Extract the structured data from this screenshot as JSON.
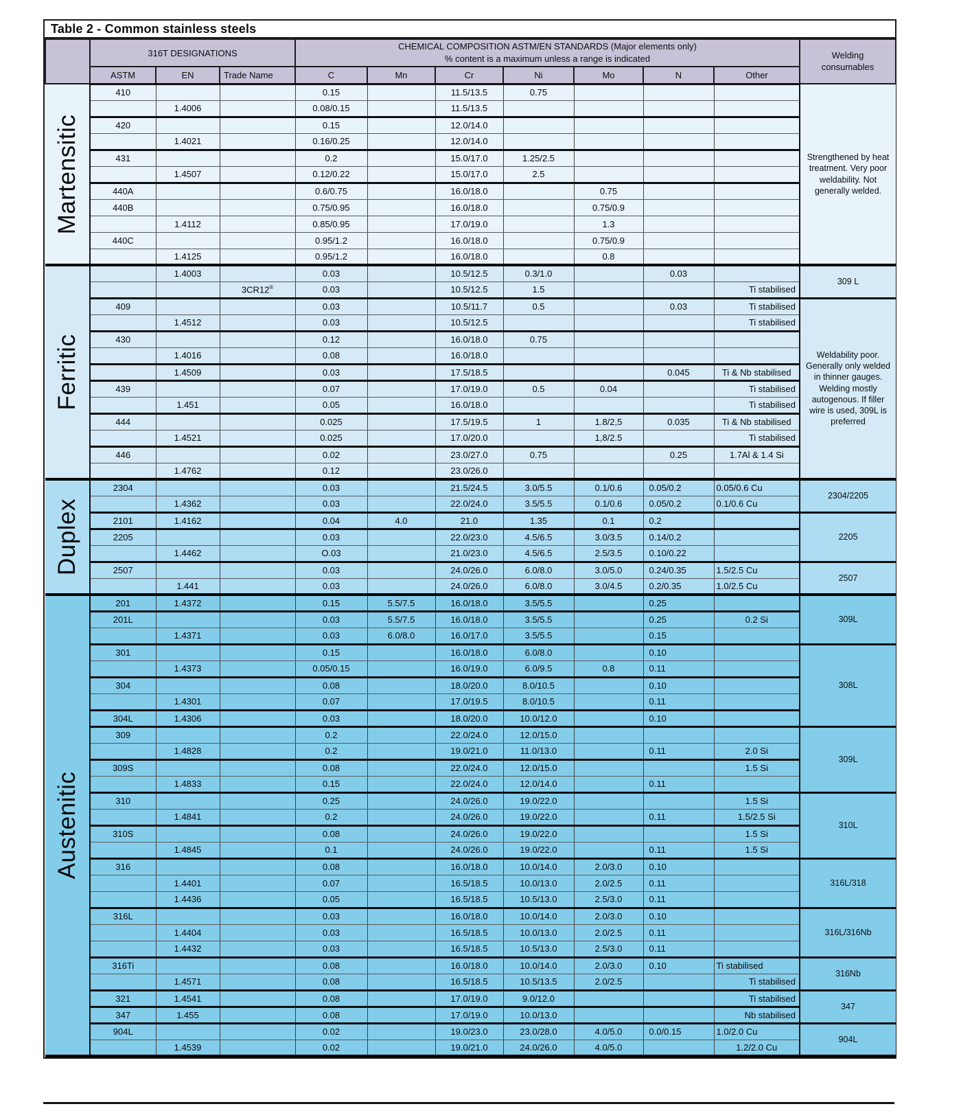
{
  "title": "Table 2 - Common stainless steels",
  "header": {
    "designations": "316T DESIGNATIONS",
    "composition_line1": "CHEMICAL COMPOSITION ASTM/EN STANDARDS (Major elements only)",
    "composition_line2": "% content is a maximum unless a range is indicated",
    "welding_line1": "Welding",
    "welding_line2": "consumables",
    "columns": [
      "ASTM",
      "EN",
      "Trade Name",
      "C",
      "Mn",
      "Cr",
      "Ni",
      "Mo",
      "N",
      "Other"
    ]
  },
  "colors": {
    "header_bg": "#c7c2d8",
    "martensitic_bg": "#e9f3fa",
    "ferritic_bg": "#d5eaf6",
    "duplex_bg": "#aedcf3",
    "austenitic_bg": "#83cdeb",
    "border_dark": "#000000",
    "border_thin": "#585858"
  },
  "sections": [
    {
      "name": "Martensitic",
      "bg": "#e9f3fa",
      "rows": [
        {
          "c": [
            "410",
            "",
            "",
            "0.15",
            "",
            "11.5/13.5",
            "0.75",
            "",
            "",
            ""
          ],
          "t": 0
        },
        {
          "c": [
            "",
            "1.4006",
            "",
            "0.08/0.15",
            "",
            "11.5/13.5",
            "",
            "",
            "",
            ""
          ],
          "t": 1
        },
        {
          "c": [
            "420",
            "",
            "",
            "0.15",
            "",
            "12.0/14.0",
            "",
            "",
            "",
            ""
          ],
          "t": 0
        },
        {
          "c": [
            "",
            "1.4021",
            "",
            "0.16/0.25",
            "",
            "12.0/14.0",
            "",
            "",
            "",
            ""
          ],
          "t": 1
        },
        {
          "c": [
            "431",
            "",
            "",
            "0.2",
            "",
            "15.0/17.0",
            "1.25/2.5",
            "",
            "",
            ""
          ],
          "t": 0
        },
        {
          "c": [
            "",
            "1.4507",
            "",
            "0.12/0.22",
            "",
            "15.0/17.0",
            "2.5",
            "",
            "",
            ""
          ],
          "t": 1
        },
        {
          "c": [
            "440A",
            "",
            "",
            "0.6/0.75",
            "",
            "16.0/18.0",
            "",
            "0.75",
            "",
            ""
          ],
          "t": 0
        },
        {
          "c": [
            "440B",
            "",
            "",
            "0.75/0.95",
            "",
            "16.0/18.0",
            "",
            "0.75/0.9",
            "",
            ""
          ],
          "t": 0
        },
        {
          "c": [
            "",
            "1.4112",
            "",
            "0.85/0.95",
            "",
            "17.0/19.0",
            "",
            "1.3",
            "",
            ""
          ],
          "t": 0
        },
        {
          "c": [
            "440C",
            "",
            "",
            "0.95/1.2",
            "",
            "16.0/18.0",
            "",
            "0.75/0.9",
            "",
            ""
          ],
          "t": 0
        },
        {
          "c": [
            "",
            "1.4125",
            "",
            "0.95/1.2",
            "",
            "16.0/18.0",
            "",
            "0.8",
            "",
            ""
          ],
          "t": 0
        }
      ],
      "welding": [
        {
          "span": 11,
          "text": "Strengthened by heat treatment. Very poor weldability. Not generally welded."
        }
      ]
    },
    {
      "name": "Ferritic",
      "bg": "#d5eaf6",
      "rows": [
        {
          "c": [
            "",
            "1.4003",
            "",
            "0.03",
            "",
            "10.5/12.5",
            "0.3/1.0",
            "",
            "0.03",
            ""
          ],
          "t": 0
        },
        {
          "c": [
            "",
            "",
            "3CR12®",
            "0.03",
            "",
            "10.5/12.5",
            "1.5",
            "",
            "",
            "Ti stabilised"
          ],
          "t": 1
        },
        {
          "c": [
            "409",
            "",
            "",
            "0.03",
            "",
            "10.5/11.7",
            "0.5",
            "",
            "0.03",
            "Ti stabilised"
          ],
          "t": 0
        },
        {
          "c": [
            "",
            "1.4512",
            "",
            "0.03",
            "",
            "10.5/12.5",
            "",
            "",
            "",
            "Ti stabilised"
          ],
          "t": 1
        },
        {
          "c": [
            "430",
            "",
            "",
            "0.12",
            "",
            "16.0/18.0",
            "0.75",
            "",
            "",
            ""
          ],
          "t": 0
        },
        {
          "c": [
            "",
            "1.4016",
            "",
            "0.08",
            "",
            "16.0/18.0",
            "",
            "",
            "",
            ""
          ],
          "t": 1
        },
        {
          "c": [
            "",
            "1.4509",
            "",
            "0.03",
            "",
            "17.5/18.5",
            "",
            "",
            "0.045",
            "Ti & Nb stabilised"
          ],
          "t": 1
        },
        {
          "c": [
            "439",
            "",
            "",
            "0.07",
            "",
            "17.0/19.0",
            "0.5",
            "0.04",
            "",
            "Ti stabilised"
          ],
          "t": 0
        },
        {
          "c": [
            "",
            "1.451",
            "",
            "0.05",
            "",
            "16.0/18.0",
            "",
            "",
            "",
            "Ti stabilised"
          ],
          "t": 1
        },
        {
          "c": [
            "444",
            "",
            "",
            "0.025",
            "",
            "17.5/19.5",
            "1",
            "1.8/2,5",
            "0.035",
            "Ti & Nb stabilised"
          ],
          "t": 0
        },
        {
          "c": [
            "",
            "1.4521",
            "",
            "0.025",
            "",
            "17.0/20.0",
            "",
            "1,8/2.5",
            "",
            "Ti stabilised"
          ],
          "t": 1
        },
        {
          "c": [
            "446",
            "",
            "",
            "0.02",
            "",
            "23.0/27.0",
            "0.75",
            "",
            "0.25",
            "1.7Al & 1.4 Si"
          ],
          "t": 0
        },
        {
          "c": [
            "",
            "1.4762",
            "",
            "0.12",
            "",
            "23.0/26.0",
            "",
            "",
            "",
            ""
          ],
          "t": 0
        }
      ],
      "welding": [
        {
          "span": 2,
          "text": "309 L"
        },
        {
          "span": 11,
          "text": "Weldability poor. Generally only welded in thinner gauges. Welding mostly autogenous. If filler wire is used, 309L is preferred"
        }
      ]
    },
    {
      "name": "Duplex",
      "bg": "#aedcf3",
      "rows": [
        {
          "c": [
            "2304",
            "",
            "",
            "0.03",
            "",
            "21.5/24.5",
            "3.0/5.5",
            "0.1/0.6",
            "0.05/0.2",
            "0.05/0.6 Cu"
          ],
          "t": 0
        },
        {
          "c": [
            "",
            "1.4362",
            "",
            "0.03",
            "",
            "22.0/24.0",
            "3.5/5.5",
            "0.1/0.6",
            "0.05/0.2",
            "0.1/0.6 Cu"
          ],
          "t": 1
        },
        {
          "c": [
            "2101",
            "1.4162",
            "",
            "0.04",
            "4.0",
            "21.0",
            "1.35",
            "0.1",
            "0.2",
            ""
          ],
          "t": 1
        },
        {
          "c": [
            "2205",
            "",
            "",
            "0.03",
            "",
            "22.0/23.0",
            "4.5/6.5",
            "3.0/3.5",
            "0.14/0.2",
            ""
          ],
          "t": 0
        },
        {
          "c": [
            "",
            "1.4462",
            "",
            "O.03",
            "",
            "21.0/23.0",
            "4.5/6.5",
            "2.5/3.5",
            "0.10/0.22",
            ""
          ],
          "t": 1
        },
        {
          "c": [
            "2507",
            "",
            "",
            "0.03",
            "",
            "24.0/26.0",
            "6.0/8.0",
            "3.0/5.0",
            "0.24/0.35",
            "1.5/2.5 Cu"
          ],
          "t": 0
        },
        {
          "c": [
            "",
            "1.441",
            "",
            "0.03",
            "",
            "24.0/26.0",
            "6.0/8.0",
            "3.0/4.5",
            "0.2/0.35",
            "1.0/2.5 Cu"
          ],
          "t": 0
        }
      ],
      "welding": [
        {
          "span": 2,
          "text": "2304/2205"
        },
        {
          "span": 3,
          "text": "2205"
        },
        {
          "span": 2,
          "text": "2507"
        }
      ]
    },
    {
      "name": "Austenitic",
      "bg": "#83cdeb",
      "rows": [
        {
          "c": [
            "201",
            "1.4372",
            "",
            "0.15",
            "5.5/7.5",
            "16.0/18.0",
            "3.5/5.5",
            "",
            "0.25",
            ""
          ],
          "t": 1
        },
        {
          "c": [
            "201L",
            "",
            "",
            "0.03",
            "5.5/7.5",
            "16.0/18.0",
            "3.5/5.5",
            "",
            "0.25",
            "0.2 Si"
          ],
          "t": 0
        },
        {
          "c": [
            "",
            "1.4371",
            "",
            "0.03",
            "6.0/8.0",
            "16.0/17.0",
            "3.5/5.5",
            "",
            "0.15",
            ""
          ],
          "t": 1
        },
        {
          "c": [
            "301",
            "",
            "",
            "0.15",
            "",
            "16.0/18.0",
            "6.0/8.0",
            "",
            "0.10",
            ""
          ],
          "t": 0
        },
        {
          "c": [
            "",
            "1.4373",
            "",
            "0.05/0.15",
            "",
            "16.0/19.0",
            "6.0/9.5",
            "0.8",
            "0.11",
            ""
          ],
          "t": 1
        },
        {
          "c": [
            "304",
            "",
            "",
            "0.08",
            "",
            "18.0/20.0",
            "8.0/10.5",
            "",
            "0.10",
            ""
          ],
          "t": 0
        },
        {
          "c": [
            "",
            "1.4301",
            "",
            "0.07",
            "",
            "17.0/19.5",
            "8.0/10.5",
            "",
            "0.11",
            ""
          ],
          "t": 1
        },
        {
          "c": [
            "304L",
            "1.4306",
            "",
            "0.03",
            "",
            "18.0/20.0",
            "10.0/12.0",
            "",
            "0.10",
            ""
          ],
          "t": 1
        },
        {
          "c": [
            "309",
            "",
            "",
            "0.2",
            "",
            "22.0/24.0",
            "12.0/15.0",
            "",
            "",
            ""
          ],
          "t": 0
        },
        {
          "c": [
            "",
            "1.4828",
            "",
            "0.2",
            "",
            "19.0/21.0",
            "11.0/13.0",
            "",
            "0.11",
            "2.0 Si"
          ],
          "t": 1
        },
        {
          "c": [
            "309S",
            "",
            "",
            "0.08",
            "",
            "22.0/24.0",
            "12.0/15.0",
            "",
            "",
            "1.5 Si"
          ],
          "t": 0
        },
        {
          "c": [
            "",
            "1.4833",
            "",
            "0.15",
            "",
            "22.0/24.0",
            "12.0/14.0",
            "",
            "0.11",
            ""
          ],
          "t": 1
        },
        {
          "c": [
            "310",
            "",
            "",
            "0.25",
            "",
            "24.0/26.0",
            "19.0/22.0",
            "",
            "",
            "1.5 Si"
          ],
          "t": 0
        },
        {
          "c": [
            "",
            "1.4841",
            "",
            "0.2",
            "",
            "24.0/26.0",
            "19.0/22.0",
            "",
            "0.11",
            "1.5/2.5 Si"
          ],
          "t": 1
        },
        {
          "c": [
            "310S",
            "",
            "",
            "0.08",
            "",
            "24.0/26.0",
            "19.0/22.0",
            "",
            "",
            "1.5 Si"
          ],
          "t": 0
        },
        {
          "c": [
            "",
            "1.4845",
            "",
            "0.1",
            "",
            "24.0/26.0",
            "19.0/22.0",
            "",
            "0.11",
            "1.5 Si"
          ],
          "t": 1
        },
        {
          "c": [
            "316",
            "",
            "",
            "0.08",
            "",
            "16.0/18.0",
            "10.0/14.0",
            "2.0/3.0",
            "0.10",
            ""
          ],
          "t": 0
        },
        {
          "c": [
            "",
            "1.4401",
            "",
            "0.07",
            "",
            "16.5/18.5",
            "10.0/13.0",
            "2.0/2.5",
            "0.11",
            ""
          ],
          "t": 0
        },
        {
          "c": [
            "",
            "1.4436",
            "",
            "0.05",
            "",
            "16.5/18.5",
            "10.5/13.0",
            "2.5/3.0",
            "0.11",
            ""
          ],
          "t": 1
        },
        {
          "c": [
            "316L",
            "",
            "",
            "0.03",
            "",
            "16.0/18.0",
            "10.0/14.0",
            "2.0/3.0",
            "0.10",
            ""
          ],
          "t": 0
        },
        {
          "c": [
            "",
            "1.4404",
            "",
            "0.03",
            "",
            "16.5/18.5",
            "10.0/13.0",
            "2.0/2.5",
            "0.11",
            ""
          ],
          "t": 0
        },
        {
          "c": [
            "",
            "1.4432",
            "",
            "0.03",
            "",
            "16.5/18.5",
            "10.5/13.0",
            "2.5/3.0",
            "0.11",
            ""
          ],
          "t": 1
        },
        {
          "c": [
            "316Ti",
            "",
            "",
            "0.08",
            "",
            "16.0/18.0",
            "10.0/14.0",
            "2.0/3.0",
            "0.10",
            "Ti stabilised"
          ],
          "t": 0,
          "oa": "l"
        },
        {
          "c": [
            "",
            "1.4571",
            "",
            "0.08",
            "",
            "16.5/18.5",
            "10.5/13.5",
            "2.0/2.5",
            "",
            "Ti stabilised"
          ],
          "t": 1
        },
        {
          "c": [
            "321",
            "1.4541",
            "",
            "0.08",
            "",
            "17.0/19.0",
            "9.0/12.0",
            "",
            "",
            "Ti stabilised"
          ],
          "t": 1
        },
        {
          "c": [
            "347",
            "1.455",
            "",
            "0.08",
            "",
            "17.0/19.0",
            "10.0/13.0",
            "",
            "",
            "Nb stabilised"
          ],
          "t": 1
        },
        {
          "c": [
            "904L",
            "",
            "",
            "0.02",
            "",
            "19.0/23.0",
            "23.0/28.0",
            "4.0/5.0",
            "0.0/0.15",
            "1.0/2.0 Cu"
          ],
          "t": 0
        },
        {
          "c": [
            "",
            "1.4539",
            "",
            "0.02",
            "",
            "19.0/21.0",
            "24.0/26.0",
            "4.0/5.0",
            "",
            "1.2/2.0 Cu"
          ],
          "t": 0,
          "oa": "c"
        }
      ],
      "welding": [
        {
          "span": 3,
          "text": "309L"
        },
        {
          "span": 5,
          "text": "308L"
        },
        {
          "span": 4,
          "text": "309L"
        },
        {
          "span": 4,
          "text": "310L"
        },
        {
          "span": 3,
          "text": "316L/318"
        },
        {
          "span": 3,
          "text": "316L/316Nb"
        },
        {
          "span": 2,
          "text": "316Nb"
        },
        {
          "span": 2,
          "text": "347"
        },
        {
          "span": 2,
          "text": "904L"
        }
      ]
    }
  ]
}
